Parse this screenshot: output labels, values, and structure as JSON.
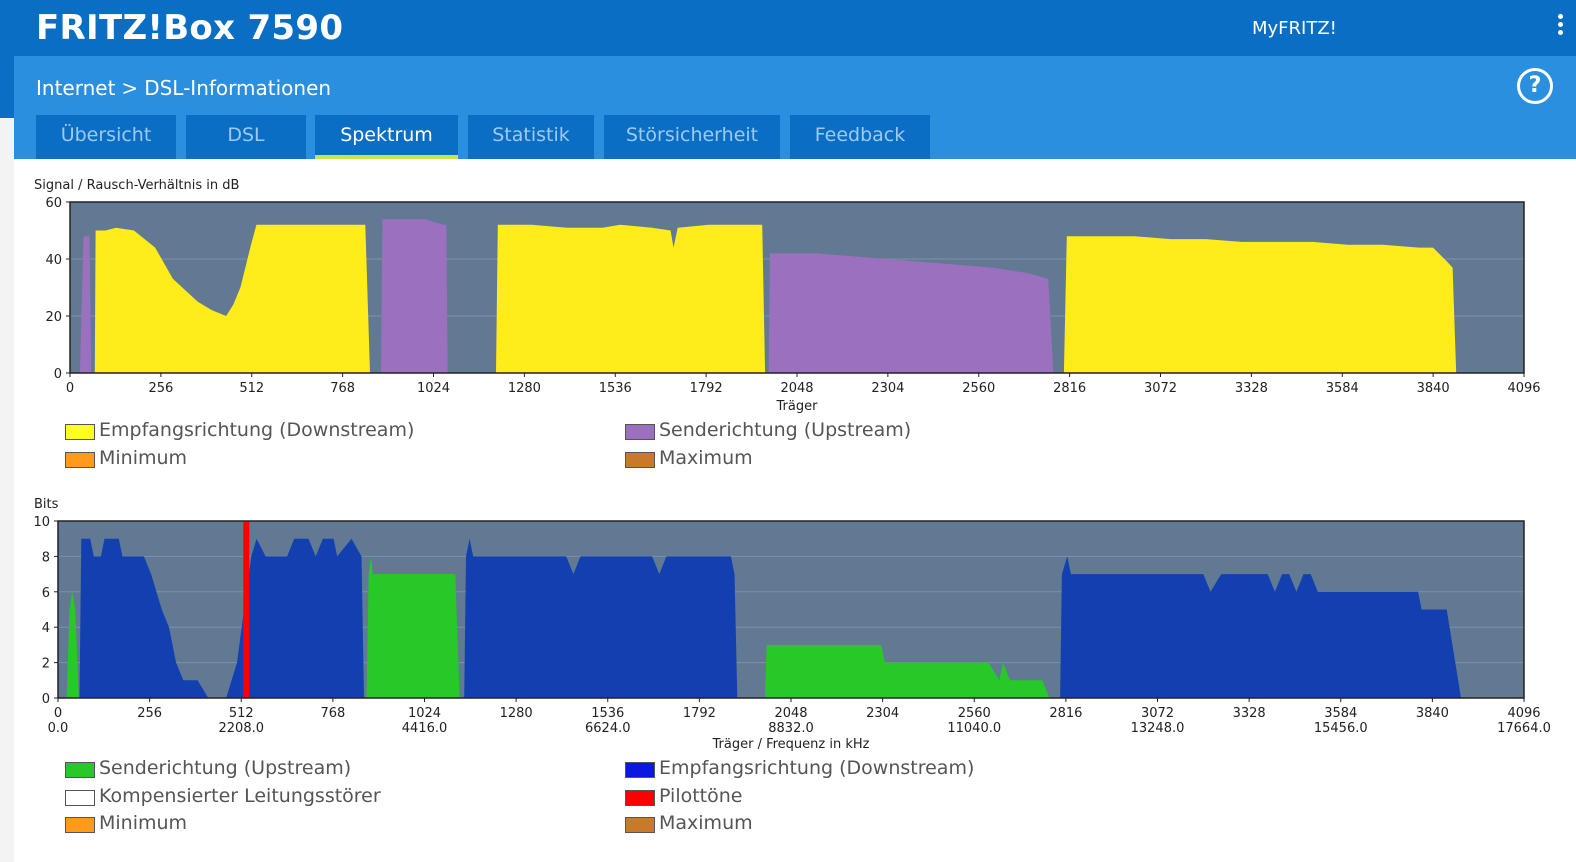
{
  "header": {
    "brand": "FRITZ!Box 7590",
    "myfritz": "MyFRITZ!"
  },
  "breadcrumb": {
    "section": "Internet",
    "separator": ">",
    "page": "DSL-Informationen"
  },
  "help_icon": "help-icon",
  "tabs": [
    {
      "label": "Übersicht",
      "active": false
    },
    {
      "label": "DSL",
      "active": false
    },
    {
      "label": "Spektrum",
      "active": true
    },
    {
      "label": "Statistik",
      "active": false
    },
    {
      "label": "Störsicherheit",
      "active": false
    },
    {
      "label": "Feedback",
      "active": false
    }
  ],
  "colors": {
    "downstream_snr": "#ffec1a",
    "upstream_snr": "#9a70bf",
    "upstream_bits": "#26c927",
    "downstream_bits": "#1240b0",
    "pilot": "#ff0000",
    "minimum": "#ff9a1a",
    "maximum": "#c87a2a",
    "plot_bg": "#617993"
  },
  "legend1": [
    {
      "label": "Empfangsrichtung (Downstream)",
      "color": "#ffff20"
    },
    {
      "label": "Senderichtung (Upstream)",
      "color": "#9a70bf"
    },
    {
      "label": "Minimum",
      "color": "#ff9a1a"
    },
    {
      "label": "Maximum",
      "color": "#c87a2a"
    }
  ],
  "legend2": [
    {
      "label": "Senderichtung (Upstream)",
      "color": "#26c927"
    },
    {
      "label": "Empfangsrichtung (Downstream)",
      "color": "#0a18e0"
    },
    {
      "label": "Kompensierter Leitungsstörer",
      "color": "#ffffff"
    },
    {
      "label": "Pilottöne",
      "color": "#ff0000"
    },
    {
      "label": "Minimum",
      "color": "#ff9a1a"
    },
    {
      "label": "Maximum",
      "color": "#c87a2a"
    }
  ],
  "chart_data": [
    {
      "type": "area",
      "ylabel": "Signal / Rausch-Verhältnis in dB",
      "xlabel": "Träger",
      "xlim": [
        0,
        4096
      ],
      "ylim": [
        0,
        60
      ],
      "xticks": [
        0,
        256,
        512,
        768,
        1024,
        1280,
        1536,
        1792,
        2048,
        2304,
        2560,
        2816,
        3072,
        3328,
        3584,
        3840,
        4096
      ],
      "yticks": [
        0,
        20,
        40,
        60
      ],
      "grid": true,
      "series": [
        {
          "name": "Empfangsrichtung (Downstream)",
          "color": "#ffec1a",
          "segments": [
            [
              [
                70,
                0
              ],
              [
                72,
                50
              ],
              [
                100,
                50
              ],
              [
                130,
                51
              ],
              [
                180,
                50
              ],
              [
                240,
                44
              ],
              [
                290,
                33
              ],
              [
                360,
                25
              ],
              [
                400,
                22
              ],
              [
                440,
                20
              ],
              [
                460,
                24
              ],
              [
                480,
                30
              ],
              [
                510,
                45
              ],
              [
                525,
                52
              ],
              [
                600,
                52
              ],
              [
                700,
                52
              ],
              [
                832,
                52
              ],
              [
                845,
                0
              ]
            ],
            [
              [
                1200,
                0
              ],
              [
                1205,
                52
              ],
              [
                1300,
                52
              ],
              [
                1400,
                51
              ],
              [
                1500,
                51
              ],
              [
                1550,
                52
              ],
              [
                1640,
                51
              ],
              [
                1692,
                50
              ],
              [
                1700,
                44
              ],
              [
                1712,
                51
              ],
              [
                1800,
                52
              ],
              [
                1950,
                52
              ],
              [
                1958,
                0
              ]
            ],
            [
              [
                2800,
                0
              ],
              [
                2808,
                48
              ],
              [
                2900,
                48
              ],
              [
                3000,
                48
              ],
              [
                3100,
                47
              ],
              [
                3200,
                47
              ],
              [
                3300,
                46
              ],
              [
                3400,
                46
              ],
              [
                3500,
                46
              ],
              [
                3600,
                45
              ],
              [
                3700,
                45
              ],
              [
                3800,
                44
              ],
              [
                3840,
                44
              ],
              [
                3880,
                39
              ],
              [
                3895,
                37
              ],
              [
                3905,
                0
              ]
            ]
          ]
        },
        {
          "name": "Senderichtung (Upstream)",
          "color": "#9a70bf",
          "segments": [
            [
              [
                28,
                0
              ],
              [
                38,
                48
              ],
              [
                55,
                48
              ],
              [
                60,
                0
              ]
            ],
            [
              [
                876,
                0
              ],
              [
                880,
                54
              ],
              [
                1000,
                54
              ],
              [
                1052,
                52
              ],
              [
                1060,
                52
              ],
              [
                1064,
                0
              ]
            ],
            [
              [
                1968,
                0
              ],
              [
                1972,
                42
              ],
              [
                2100,
                42
              ],
              [
                2200,
                41
              ],
              [
                2300,
                40
              ],
              [
                2400,
                39
              ],
              [
                2500,
                38
              ],
              [
                2600,
                37
              ],
              [
                2700,
                35
              ],
              [
                2756,
                33
              ],
              [
                2770,
                0
              ]
            ]
          ]
        }
      ]
    },
    {
      "type": "area",
      "ylabel": "Bits",
      "xlabel": "Träger / Frequenz in kHz",
      "xlim": [
        0,
        4096
      ],
      "ylim": [
        0,
        10
      ],
      "xticks": [
        0,
        256,
        512,
        768,
        1024,
        1280,
        1536,
        1792,
        2048,
        2304,
        2560,
        2816,
        3072,
        3328,
        3584,
        3840,
        4096
      ],
      "freq_ticks": [
        "0.0",
        "",
        "2208.0",
        "",
        "4416.0",
        "",
        "6624.0",
        "",
        "8832.0",
        "",
        "11040.0",
        "",
        "13248.0",
        "",
        "15456.0",
        "",
        "17664.0"
      ],
      "yticks": [
        0,
        2,
        4,
        6,
        8,
        10
      ],
      "grid": true,
      "pilot_tone_carrier": 526,
      "series": [
        {
          "name": "Senderichtung (Upstream)",
          "color": "#26c927",
          "segments": [
            [
              [
                24,
                0
              ],
              [
                32,
                5
              ],
              [
                40,
                6
              ],
              [
                48,
                5
              ],
              [
                58,
                0
              ]
            ],
            [
              [
                862,
                0
              ],
              [
                868,
                7
              ],
              [
                874,
                8
              ],
              [
                880,
                7
              ],
              [
                1000,
                7
              ],
              [
                1110,
                7
              ],
              [
                1122,
                0
              ]
            ],
            [
              [
                1975,
                0
              ],
              [
                1980,
                3
              ],
              [
                2100,
                3
              ],
              [
                2200,
                3
              ],
              [
                2300,
                3
              ],
              [
                2310,
                2
              ],
              [
                2500,
                2
              ],
              [
                2600,
                2
              ],
              [
                2630,
                1
              ],
              [
                2640,
                2
              ],
              [
                2660,
                1
              ],
              [
                2750,
                1
              ],
              [
                2770,
                0
              ]
            ]
          ]
        },
        {
          "name": "Empfangsrichtung (Downstream)",
          "color": "#1240b0",
          "segments": [
            [
              [
                60,
                0
              ],
              [
                65,
                9
              ],
              [
                90,
                9
              ],
              [
                100,
                8
              ],
              [
                120,
                8
              ],
              [
                130,
                9
              ],
              [
                170,
                9
              ],
              [
                180,
                8
              ],
              [
                240,
                8
              ],
              [
                260,
                7
              ],
              [
                290,
                5
              ],
              [
                310,
                4
              ],
              [
                330,
                2
              ],
              [
                350,
                1
              ],
              [
                390,
                1
              ],
              [
                420,
                0
              ]
            ],
            [
              [
                470,
                0
              ],
              [
                500,
                2
              ],
              [
                520,
                5
              ],
              [
                540,
                8
              ],
              [
                555,
                9
              ],
              [
                580,
                8
              ],
              [
                620,
                8
              ],
              [
                640,
                8
              ],
              [
                660,
                9
              ],
              [
                700,
                9
              ],
              [
                720,
                8
              ],
              [
                740,
                9
              ],
              [
                770,
                9
              ],
              [
                780,
                8
              ],
              [
                820,
                9
              ],
              [
                848,
                8
              ],
              [
                855,
                0
              ]
            ],
            [
              [
                1135,
                0
              ],
              [
                1140,
                8
              ],
              [
                1150,
                9
              ],
              [
                1160,
                8
              ],
              [
                1300,
                8
              ],
              [
                1420,
                8
              ],
              [
                1440,
                7
              ],
              [
                1460,
                8
              ],
              [
                1660,
                8
              ],
              [
                1680,
                7
              ],
              [
                1700,
                8
              ],
              [
                1880,
                8
              ],
              [
                1890,
                7
              ],
              [
                1898,
                0
              ]
            ],
            [
              [
                2800,
                0
              ],
              [
                2805,
                7
              ],
              [
                2820,
                8
              ],
              [
                2830,
                7
              ],
              [
                2950,
                7
              ],
              [
                3050,
                7
              ],
              [
                3200,
                7
              ],
              [
                3220,
                6
              ],
              [
                3250,
                7
              ],
              [
                3380,
                7
              ],
              [
                3400,
                6
              ],
              [
                3420,
                7
              ],
              [
                3440,
                7
              ],
              [
                3460,
                6
              ],
              [
                3480,
                7
              ],
              [
                3500,
                7
              ],
              [
                3520,
                6
              ],
              [
                3600,
                6
              ],
              [
                3800,
                6
              ],
              [
                3810,
                5
              ],
              [
                3880,
                5
              ],
              [
                3920,
                0
              ]
            ]
          ]
        }
      ]
    }
  ]
}
